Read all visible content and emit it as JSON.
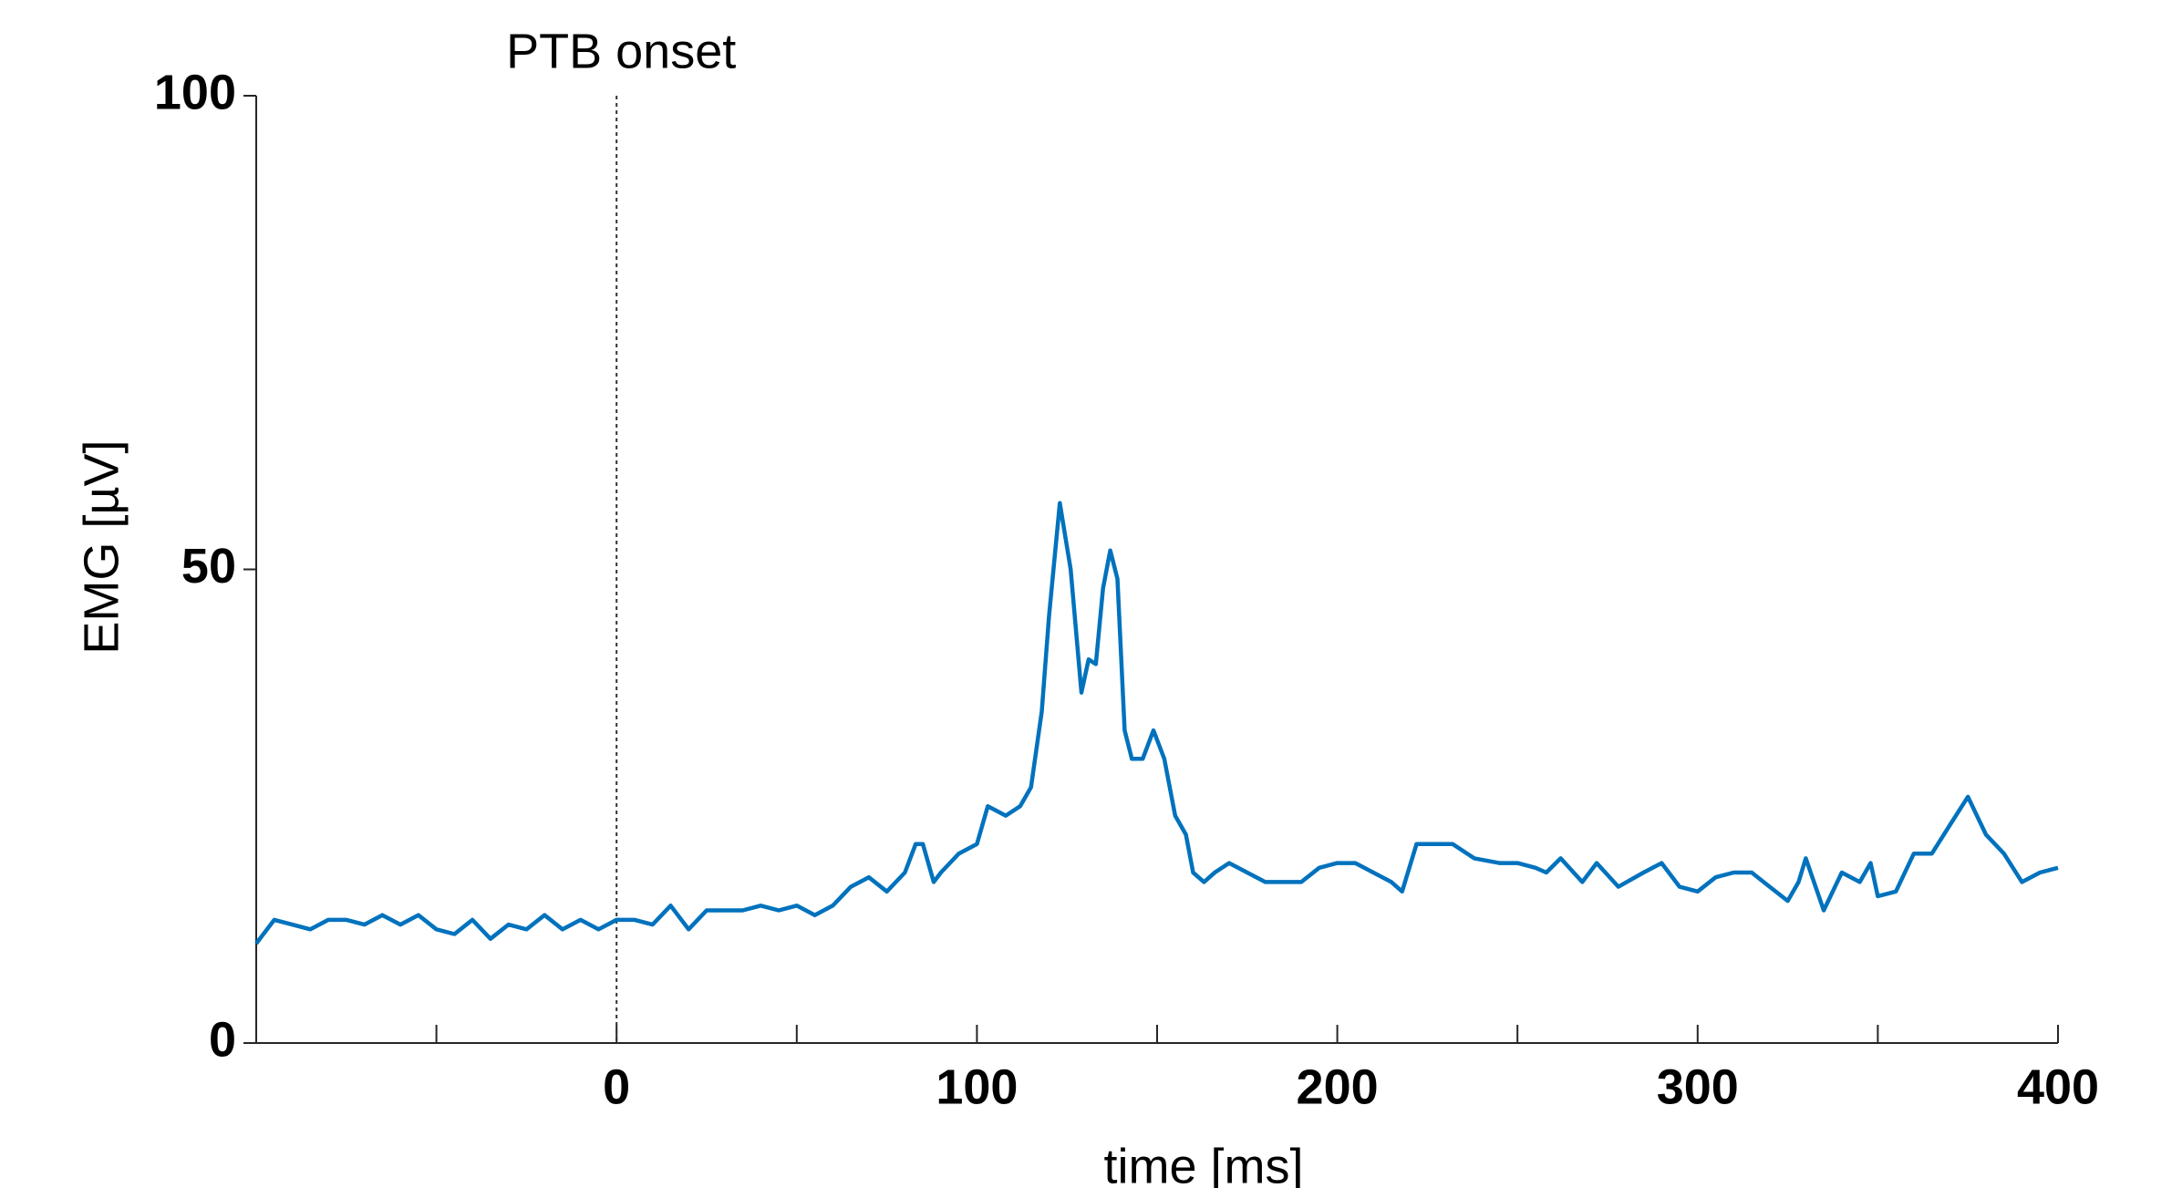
{
  "chart_data": {
    "type": "line",
    "xlabel": "time [ms]",
    "ylabel": "EMG [µV]",
    "annotation": {
      "x": 0,
      "label": "PTB onset"
    },
    "color": "#0072bd",
    "x": [
      -100,
      -95,
      -90,
      -85,
      -80,
      -75,
      -70,
      -65,
      -60,
      -55,
      -50,
      -45,
      -40,
      -35,
      -30,
      -25,
      -20,
      -15,
      -10,
      -5,
      0,
      5,
      10,
      15,
      20,
      25,
      30,
      35,
      40,
      45,
      50,
      55,
      60,
      65,
      70,
      75,
      80,
      83,
      85,
      88,
      90,
      95,
      100,
      103,
      108,
      112,
      115,
      118,
      120,
      123,
      126,
      129,
      131,
      133,
      135,
      137,
      139,
      141,
      143,
      146,
      149,
      152,
      155,
      158,
      160,
      163,
      166,
      170,
      175,
      180,
      185,
      190,
      195,
      200,
      205,
      210,
      215,
      218,
      222,
      228,
      232,
      238,
      245,
      250,
      255,
      258,
      262,
      268,
      272,
      278,
      285,
      290,
      295,
      300,
      305,
      310,
      315,
      320,
      325,
      328,
      330,
      335,
      340,
      345,
      348,
      350,
      355,
      360,
      365,
      370,
      375,
      380,
      385,
      390,
      395,
      400
    ],
    "values": [
      10.5,
      13,
      12.5,
      12,
      13,
      13,
      12.5,
      13.5,
      12.5,
      13.5,
      12,
      11.5,
      13,
      11,
      12.5,
      12,
      13.5,
      12,
      13,
      12,
      13,
      13,
      12.5,
      14.5,
      12,
      14,
      14,
      14,
      14.5,
      14,
      14.5,
      13.5,
      14.5,
      16.5,
      17.5,
      16,
      18,
      21,
      21,
      17,
      18,
      20,
      21,
      25,
      24,
      25,
      27,
      35,
      45,
      57,
      50,
      37,
      40.5,
      40,
      48,
      52,
      49,
      33,
      30,
      30,
      33,
      30,
      24,
      22,
      18,
      17,
      18,
      19,
      18,
      17,
      17,
      17,
      18.5,
      19,
      19,
      18,
      17,
      16,
      21,
      21,
      21,
      19.5,
      19,
      19,
      18.5,
      18,
      19.5,
      17,
      19,
      16.5,
      18,
      19,
      16.5,
      16,
      17.5,
      18,
      18,
      16.5,
      15,
      17,
      19.5,
      14,
      18,
      17,
      19,
      15.5,
      16,
      20,
      20,
      23,
      26,
      22,
      20,
      17,
      18,
      18.5
    ],
    "xlim": [
      -100,
      400
    ],
    "xticks": [
      0,
      100,
      200,
      300,
      400
    ],
    "xminorticks": [
      -50,
      50,
      150,
      250,
      350
    ],
    "ylim": [
      0,
      100
    ],
    "yticks": [
      0,
      50,
      100
    ],
    "grid": false
  }
}
